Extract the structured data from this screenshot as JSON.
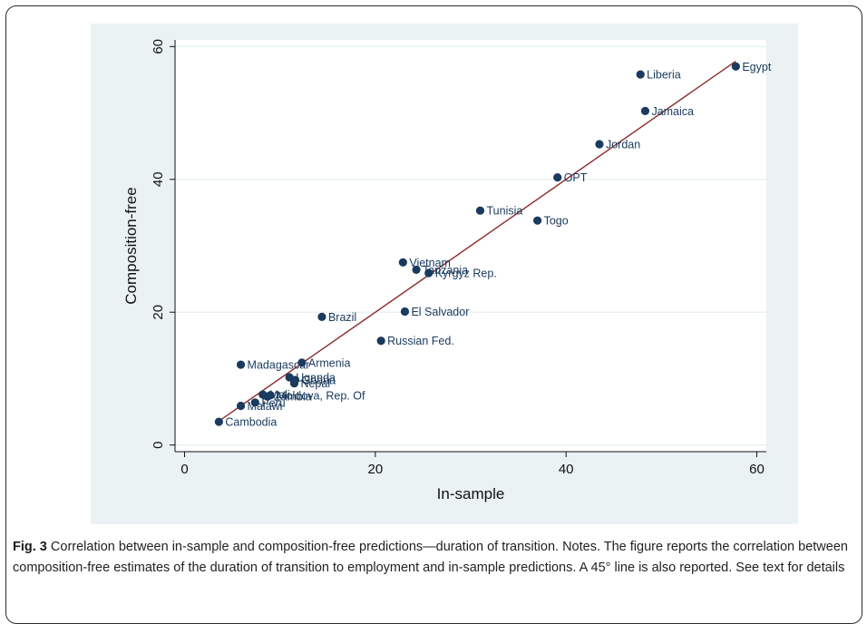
{
  "figure": {
    "label": "Fig. 3",
    "caption": "Correlation between in-sample and composition-free predictions—duration of transition. Notes. The figure reports the correlation between composition-free estimates of the duration of transition to employment and in-sample predictions. A 45° line is also reported. See text for details"
  },
  "colors": {
    "panel_bg": "#eaf2f3",
    "plot_bg": "#ffffff",
    "marker": "#1a3a5e",
    "fit_line": "#8b2d2d"
  },
  "chart_data": {
    "type": "scatter",
    "xlabel": "In-sample",
    "ylabel": "Composition-free",
    "xlim": [
      -1,
      61
    ],
    "ylim": [
      -1,
      61
    ],
    "xticks": [
      0,
      20,
      40,
      60
    ],
    "yticks": [
      0,
      20,
      40,
      60
    ],
    "grid": true,
    "reference_line": {
      "kind": "45-degree",
      "from": [
        3.5,
        3.5
      ],
      "to": [
        57.8,
        57.8
      ]
    },
    "points": [
      {
        "label": "Egypt",
        "x": 57.8,
        "y": 57.0
      },
      {
        "label": "Liberia",
        "x": 47.8,
        "y": 55.8
      },
      {
        "label": "Jamaica",
        "x": 48.3,
        "y": 50.3
      },
      {
        "label": "Jordan",
        "x": 43.5,
        "y": 45.3
      },
      {
        "label": "OPT",
        "x": 39.1,
        "y": 40.3
      },
      {
        "label": "Tunisia",
        "x": 31.0,
        "y": 35.3
      },
      {
        "label": "Togo",
        "x": 37.0,
        "y": 33.8
      },
      {
        "label": "Vietnam",
        "x": 22.9,
        "y": 27.5
      },
      {
        "label": "Tanzania",
        "x": 24.3,
        "y": 26.4
      },
      {
        "label": "Kyrgyz Rep.",
        "x": 25.6,
        "y": 25.9
      },
      {
        "label": "Brazil",
        "x": 14.4,
        "y": 19.3
      },
      {
        "label": "El Salvador",
        "x": 23.1,
        "y": 20.1
      },
      {
        "label": "Russian Fed.",
        "x": 20.6,
        "y": 15.7
      },
      {
        "label": "Armenia",
        "x": 12.3,
        "y": 12.4
      },
      {
        "label": "Madagascar",
        "x": 5.9,
        "y": 12.1
      },
      {
        "label": "Uganda",
        "x": 11.0,
        "y": 10.2
      },
      {
        "label": "Ghana",
        "x": 11.6,
        "y": 9.8
      },
      {
        "label": "Nepal",
        "x": 11.5,
        "y": 9.3
      },
      {
        "label": "Mali",
        "x": 8.2,
        "y": 7.6
      },
      {
        "label": "Moldova, Rep. Of",
        "x": 9.0,
        "y": 7.5
      },
      {
        "label": "Zambia",
        "x": 8.7,
        "y": 7.3
      },
      {
        "label": "Peru",
        "x": 7.4,
        "y": 6.4
      },
      {
        "label": "Malawi",
        "x": 5.9,
        "y": 5.9
      },
      {
        "label": "Cambodia",
        "x": 3.6,
        "y": 3.5
      }
    ]
  }
}
